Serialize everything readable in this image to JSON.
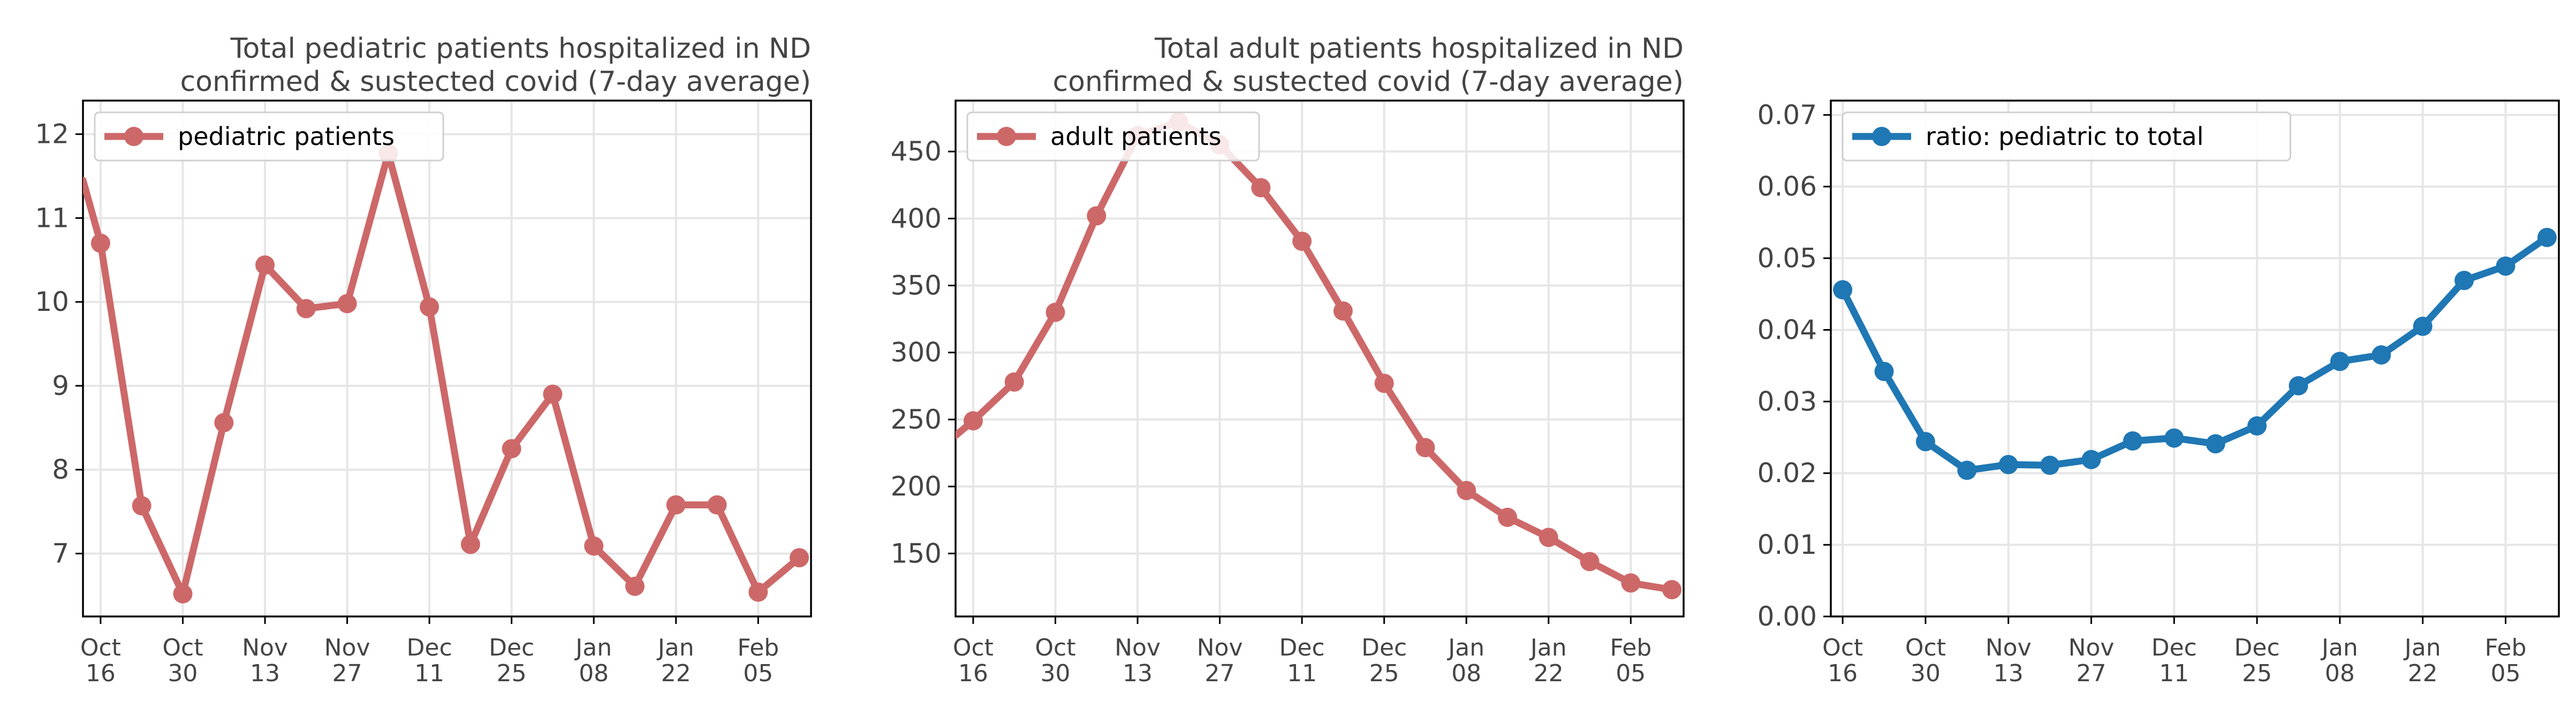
{
  "colors": {
    "series_red": "#cd6869",
    "series_blue": "#1f77b4",
    "grid": "#e6e6e6",
    "axis": "#000000",
    "text": "#444444"
  },
  "chart_data": [
    {
      "type": "line",
      "title_lines": [
        "Total pediatric patients hospitalized in ND",
        "confirmed & sustected covid (7-day average)"
      ],
      "xlabel": "",
      "ylabel": "",
      "x": [
        "2020-10-13",
        "2020-10-16",
        "2020-10-23",
        "2020-10-30",
        "2020-11-06",
        "2020-11-13",
        "2020-11-20",
        "2020-11-27",
        "2020-12-04",
        "2020-12-11",
        "2020-12-18",
        "2020-12-25",
        "2021-01-01",
        "2021-01-08",
        "2021-01-15",
        "2021-01-22",
        "2021-01-29",
        "2021-02-05",
        "2021-02-12"
      ],
      "series": [
        {
          "name": "pediatric patients",
          "color": "#cd6869",
          "values": [
            11.45,
            10.7,
            7.57,
            6.52,
            8.56,
            10.44,
            9.92,
            9.98,
            11.77,
            9.94,
            7.11,
            8.25,
            8.9,
            7.09,
            6.61,
            7.58,
            7.58,
            6.54,
            6.95
          ]
        }
      ],
      "marker_start_index": 1,
      "xlim": [
        "2020-10-13",
        "2021-02-14"
      ],
      "ylim": [
        6.25,
        12.4
      ],
      "yticks": [
        7,
        8,
        9,
        10,
        11,
        12
      ],
      "ytick_labels": [
        "7",
        "8",
        "9",
        "10",
        "11",
        "12"
      ],
      "xticks": [
        "2020-10-16",
        "2020-10-30",
        "2020-11-13",
        "2020-11-27",
        "2020-12-11",
        "2020-12-25",
        "2021-01-08",
        "2021-01-22",
        "2021-02-05"
      ],
      "xtick_labels": [
        [
          "Oct",
          "16"
        ],
        [
          "Oct",
          "30"
        ],
        [
          "Nov",
          "13"
        ],
        [
          "Nov",
          "27"
        ],
        [
          "Dec",
          "11"
        ],
        [
          "Dec",
          "25"
        ],
        [
          "Jan",
          "08"
        ],
        [
          "Jan",
          "22"
        ],
        [
          "Feb",
          "05"
        ]
      ],
      "grid": true,
      "legend": "upper-left"
    },
    {
      "type": "line",
      "title_lines": [
        "Total adult patients hospitalized in ND",
        "confirmed & sustected covid (7-day average)"
      ],
      "xlabel": "",
      "ylabel": "",
      "x": [
        "2020-10-13",
        "2020-10-16",
        "2020-10-23",
        "2020-10-30",
        "2020-11-06",
        "2020-11-13",
        "2020-11-20",
        "2020-11-27",
        "2020-12-04",
        "2020-12-11",
        "2020-12-18",
        "2020-12-25",
        "2021-01-01",
        "2021-01-08",
        "2021-01-15",
        "2021-01-22",
        "2021-01-29",
        "2021-02-05",
        "2021-02-12"
      ],
      "series": [
        {
          "name": "adult patients",
          "color": "#cd6869",
          "values": [
            238,
            249,
            278,
            330,
            402,
            462,
            472,
            455,
            423,
            383,
            331,
            277,
            229,
            197,
            177,
            162,
            144,
            128,
            123
          ]
        }
      ],
      "marker_start_index": 1,
      "xlim": [
        "2020-10-13",
        "2021-02-14"
      ],
      "ylim": [
        103,
        488
      ],
      "yticks": [
        150,
        200,
        250,
        300,
        350,
        400,
        450
      ],
      "ytick_labels": [
        "150",
        "200",
        "250",
        "300",
        "350",
        "400",
        "450"
      ],
      "xticks": [
        "2020-10-16",
        "2020-10-30",
        "2020-11-13",
        "2020-11-27",
        "2020-12-11",
        "2020-12-25",
        "2021-01-08",
        "2021-01-22",
        "2021-02-05"
      ],
      "xtick_labels": [
        [
          "Oct",
          "16"
        ],
        [
          "Oct",
          "30"
        ],
        [
          "Nov",
          "13"
        ],
        [
          "Nov",
          "27"
        ],
        [
          "Dec",
          "11"
        ],
        [
          "Dec",
          "25"
        ],
        [
          "Jan",
          "08"
        ],
        [
          "Jan",
          "22"
        ],
        [
          "Feb",
          "05"
        ]
      ],
      "grid": true,
      "legend": "upper-left"
    },
    {
      "type": "line",
      "title_lines": [],
      "xlabel": "",
      "ylabel": "",
      "x": [
        "2020-10-16",
        "2020-10-23",
        "2020-10-30",
        "2020-11-06",
        "2020-11-13",
        "2020-11-20",
        "2020-11-27",
        "2020-12-04",
        "2020-12-11",
        "2020-12-18",
        "2020-12-25",
        "2021-01-01",
        "2021-01-08",
        "2021-01-15",
        "2021-01-22",
        "2021-01-29",
        "2021-02-05",
        "2021-02-12"
      ],
      "series": [
        {
          "name": "ratio: pediatric to total",
          "color": "#1f77b4",
          "values": [
            0.0456,
            0.0342,
            0.0244,
            0.0204,
            0.0212,
            0.0211,
            0.0219,
            0.0245,
            0.0249,
            0.0241,
            0.0266,
            0.0322,
            0.0356,
            0.0365,
            0.0405,
            0.0469,
            0.0489,
            0.0529
          ]
        }
      ],
      "marker_start_index": 0,
      "xlim": [
        "2020-10-14",
        "2021-02-14"
      ],
      "ylim": [
        0,
        0.072
      ],
      "yticks": [
        0,
        0.01,
        0.02,
        0.03,
        0.04,
        0.05,
        0.06,
        0.07
      ],
      "ytick_labels": [
        "0.00",
        "0.01",
        "0.02",
        "0.03",
        "0.04",
        "0.05",
        "0.06",
        "0.07"
      ],
      "xticks": [
        "2020-10-16",
        "2020-10-30",
        "2020-11-13",
        "2020-11-27",
        "2020-12-11",
        "2020-12-25",
        "2021-01-08",
        "2021-01-22",
        "2021-02-05"
      ],
      "xtick_labels": [
        [
          "Oct",
          "16"
        ],
        [
          "Oct",
          "30"
        ],
        [
          "Nov",
          "13"
        ],
        [
          "Nov",
          "27"
        ],
        [
          "Dec",
          "11"
        ],
        [
          "Dec",
          "25"
        ],
        [
          "Jan",
          "08"
        ],
        [
          "Jan",
          "22"
        ],
        [
          "Feb",
          "05"
        ]
      ],
      "grid": true,
      "legend": "upper-left"
    }
  ]
}
